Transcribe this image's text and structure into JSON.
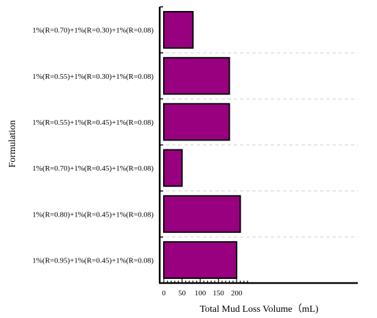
{
  "chart_data": {
    "type": "bar",
    "orientation": "horizontal",
    "title": "",
    "xlabel": "Total Mud Loss Volume（mL)",
    "ylabel": "Formulation",
    "categories": [
      "1%(R=0.70)+1%(R=0.30)+1%(R=0.08)",
      "1%(R=0.55)+1%(R=0.30)+1%(R=0.08)",
      "1%(R=0.55)+1%(R=0.45)+1%(R=0.08)",
      "1%(R=0.70)+1%(R=0.45)+1%(R=0.08)",
      "1%(R=0.80)+1%(R=0.45)+1%(R=0.08)",
      "1%(R=0.95)+1%(R=0.45)+1%(R=0.08)"
    ],
    "values": [
      80,
      180,
      180,
      50,
      210,
      200
    ],
    "xlim": [
      0,
      230
    ],
    "xticks": [
      0,
      50,
      100,
      150,
      200
    ],
    "grid": "horizontal dashed",
    "bar_color": "#990080",
    "bar_edge_color": "#000000"
  }
}
